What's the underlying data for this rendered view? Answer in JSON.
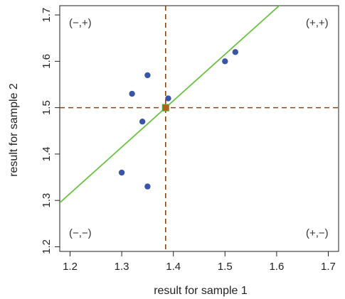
{
  "chart_data": {
    "type": "scatter",
    "xlabel": "result for sample 1",
    "ylabel": "result for sample 2",
    "xlim": [
      1.18,
      1.72
    ],
    "ylim": [
      1.19,
      1.72
    ],
    "x_ticks": [
      "1.2",
      "1.3",
      "1.4",
      "1.5",
      "1.6",
      "1.7"
    ],
    "y_ticks": [
      "1.2",
      "1.3",
      "1.4",
      "1.5",
      "1.6",
      "1.7"
    ],
    "x_tick_values": [
      1.2,
      1.3,
      1.4,
      1.5,
      1.6,
      1.7
    ],
    "y_tick_values": [
      1.2,
      1.3,
      1.4,
      1.5,
      1.6,
      1.7
    ],
    "grid": false,
    "points": [
      {
        "x": 1.3,
        "y": 1.36
      },
      {
        "x": 1.32,
        "y": 1.53
      },
      {
        "x": 1.34,
        "y": 1.47
      },
      {
        "x": 1.35,
        "y": 1.57
      },
      {
        "x": 1.35,
        "y": 1.33
      },
      {
        "x": 1.39,
        "y": 1.52
      },
      {
        "x": 1.5,
        "y": 1.6
      },
      {
        "x": 1.52,
        "y": 1.62
      }
    ],
    "mean_point": {
      "x": 1.385,
      "y": 1.5
    },
    "reference_lines": {
      "vertical_x": 1.385,
      "horizontal_y": 1.5
    },
    "fit_line": {
      "slope": 1.0,
      "intercept": 0.115
    },
    "quadrant_labels": {
      "top_left": "(−,+)",
      "top_right": "(+,+)",
      "bottom_left": "(−,−)",
      "bottom_right": "(+,−)"
    },
    "colors": {
      "points": "#3a55a4",
      "mean_point_fill": "#c8541f",
      "mean_point_edge": "#5aa832",
      "reference_lines": "#8b4513",
      "fit_line": "#6cbf45"
    }
  }
}
